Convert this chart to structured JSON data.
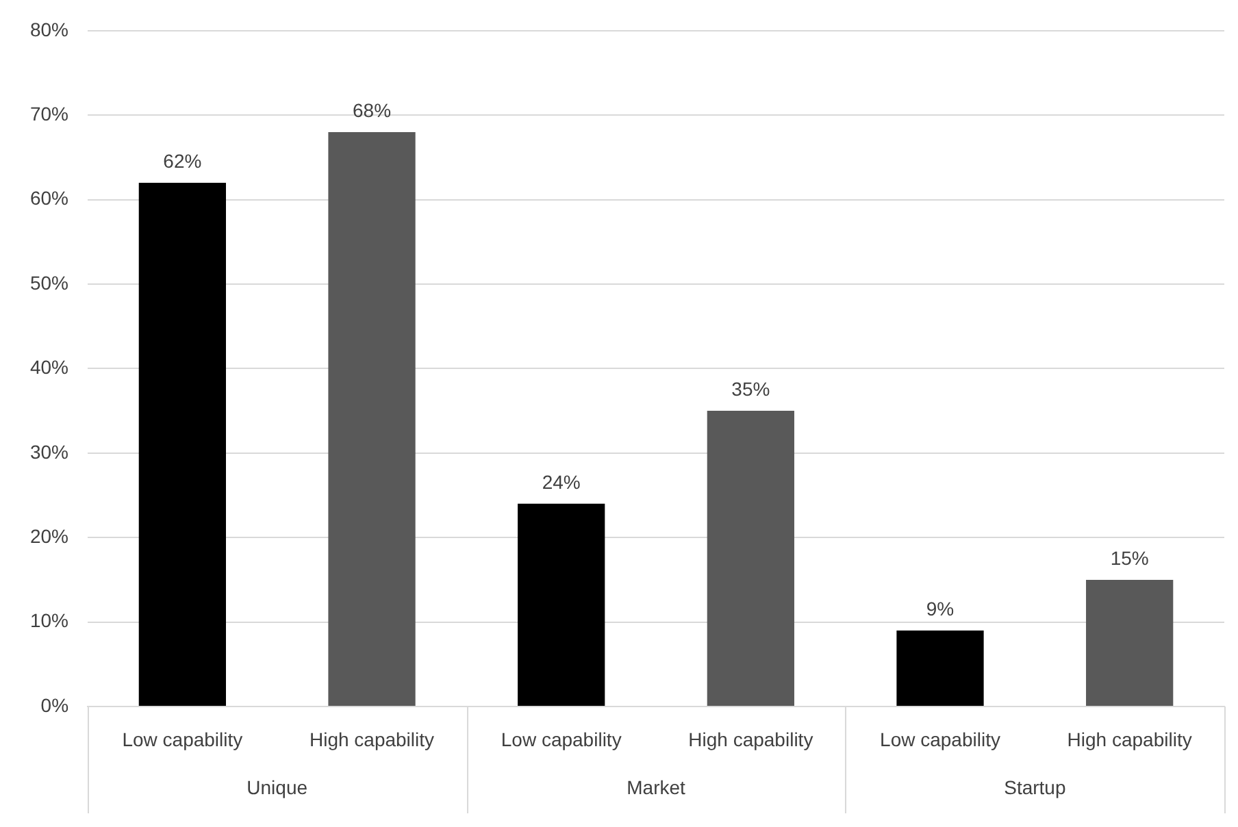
{
  "chart_data": {
    "type": "bar",
    "categories": [
      "Unique",
      "Market",
      "Startup"
    ],
    "series": [
      {
        "name": "Low capability",
        "color": "#000000",
        "values": [
          62,
          24,
          9
        ],
        "value_labels": [
          "62%",
          "24%",
          "9%"
        ]
      },
      {
        "name": "High capability",
        "color": "#595959",
        "values": [
          68,
          35,
          15
        ],
        "value_labels": [
          "68%",
          "35%",
          "15%"
        ]
      }
    ],
    "ylim": [
      0,
      80
    ],
    "yticks": [
      {
        "value": 0,
        "label": "0%"
      },
      {
        "value": 10,
        "label": "10%"
      },
      {
        "value": 20,
        "label": "20%"
      },
      {
        "value": 30,
        "label": "30%"
      },
      {
        "value": 40,
        "label": "40%"
      },
      {
        "value": 50,
        "label": "50%"
      },
      {
        "value": 60,
        "label": "60%"
      },
      {
        "value": 70,
        "label": "70%"
      },
      {
        "value": 80,
        "label": "80%"
      }
    ],
    "grid": "y",
    "legend": false
  }
}
